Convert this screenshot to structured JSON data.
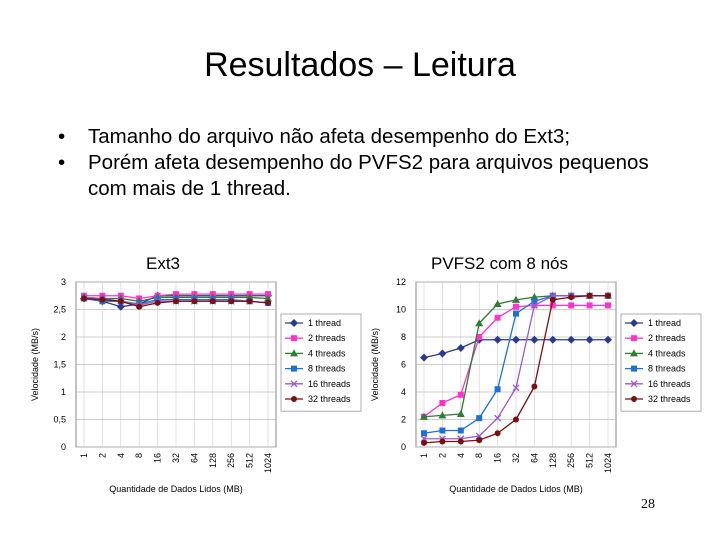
{
  "slide": {
    "title": "Resultados – Leitura",
    "bullets": [
      "Tamanho do arquivo não afeta desempenho do Ext3;",
      "Porém afeta desempenho do PVFS2 para arquivos pequenos com mais de 1 thread."
    ],
    "bullet_symbol": "•",
    "page_number": "28"
  },
  "chart_data": [
    {
      "type": "line",
      "title": "Ext3",
      "xlabel": "Quantidade de Dados Lidos (MB)",
      "ylabel": "Velocidade (MB/s)",
      "categories": [
        "1",
        "2",
        "4",
        "8",
        "16",
        "32",
        "64",
        "128",
        "256",
        "512",
        "1024"
      ],
      "ylim": [
        0,
        3
      ],
      "yticks": [
        "0",
        "0,5",
        "1",
        "1,5",
        "2",
        "2,5",
        "3"
      ],
      "grid": true,
      "legend": "right",
      "series": [
        {
          "name": "1 thread",
          "color": "#2b3a8c",
          "marker": "diamond",
          "values": [
            2.7,
            2.65,
            2.55,
            2.6,
            2.75,
            2.75,
            2.75,
            2.75,
            2.75,
            2.75,
            2.75
          ]
        },
        {
          "name": "2 threads",
          "color": "#ff33cc",
          "marker": "square",
          "values": [
            2.75,
            2.75,
            2.75,
            2.7,
            2.75,
            2.78,
            2.78,
            2.78,
            2.78,
            2.78,
            2.78
          ]
        },
        {
          "name": "4 threads",
          "color": "#2e7d32",
          "marker": "triangle",
          "values": [
            2.72,
            2.7,
            2.7,
            2.65,
            2.72,
            2.72,
            2.72,
            2.72,
            2.72,
            2.72,
            2.7
          ]
        },
        {
          "name": "8 threads",
          "color": "#1e6fd9",
          "marker": "square",
          "values": [
            2.7,
            2.65,
            2.65,
            2.6,
            2.68,
            2.68,
            2.68,
            2.68,
            2.68,
            2.65,
            2.62
          ]
        },
        {
          "name": "16 threads",
          "color": "#9b59d0",
          "marker": "x",
          "values": [
            2.72,
            2.7,
            2.65,
            2.58,
            2.65,
            2.65,
            2.65,
            2.65,
            2.65,
            2.65,
            2.62
          ]
        },
        {
          "name": "32 threads",
          "color": "#7a1010",
          "marker": "circle",
          "values": [
            2.7,
            2.68,
            2.65,
            2.55,
            2.62,
            2.65,
            2.65,
            2.65,
            2.65,
            2.65,
            2.62
          ]
        }
      ]
    },
    {
      "type": "line",
      "title": "PVFS2 com 8 nós",
      "xlabel": "Quantidade de Dados Lidos (MB)",
      "ylabel": "Velocidade (MB/s)",
      "categories": [
        "1",
        "2",
        "4",
        "8",
        "16",
        "32",
        "64",
        "128",
        "256",
        "512",
        "1024"
      ],
      "ylim": [
        0,
        12
      ],
      "yticks": [
        "0",
        "2",
        "4",
        "6",
        "8",
        "10",
        "12"
      ],
      "grid": true,
      "legend": "right",
      "series": [
        {
          "name": "1 thread",
          "color": "#2b3a8c",
          "marker": "diamond",
          "values": [
            6.5,
            6.8,
            7.2,
            7.8,
            7.8,
            7.8,
            7.8,
            7.8,
            7.8,
            7.8,
            7.8
          ]
        },
        {
          "name": "2 threads",
          "color": "#ff33cc",
          "marker": "square",
          "values": [
            2.2,
            3.2,
            3.8,
            8.0,
            9.4,
            10.2,
            10.3,
            10.3,
            10.3,
            10.3,
            10.3
          ]
        },
        {
          "name": "4 threads",
          "color": "#2e7d32",
          "marker": "triangle",
          "values": [
            2.2,
            2.3,
            2.4,
            9.0,
            10.4,
            10.7,
            10.9,
            11.0,
            11.0,
            11.0,
            11.0
          ]
        },
        {
          "name": "8 threads",
          "color": "#1e6fd9",
          "marker": "square",
          "values": [
            1.0,
            1.2,
            1.2,
            2.1,
            4.2,
            9.7,
            10.6,
            11.0,
            11.0,
            11.0,
            11.0
          ]
        },
        {
          "name": "16 threads",
          "color": "#9b59d0",
          "marker": "x",
          "values": [
            0.6,
            0.6,
            0.6,
            0.8,
            2.1,
            4.3,
            10.3,
            11.0,
            11.0,
            11.0,
            11.0
          ]
        },
        {
          "name": "32 threads",
          "color": "#7a1010",
          "marker": "circle",
          "values": [
            0.3,
            0.4,
            0.4,
            0.5,
            1.0,
            2.0,
            4.4,
            10.7,
            10.9,
            11.0,
            11.0
          ]
        }
      ]
    }
  ]
}
